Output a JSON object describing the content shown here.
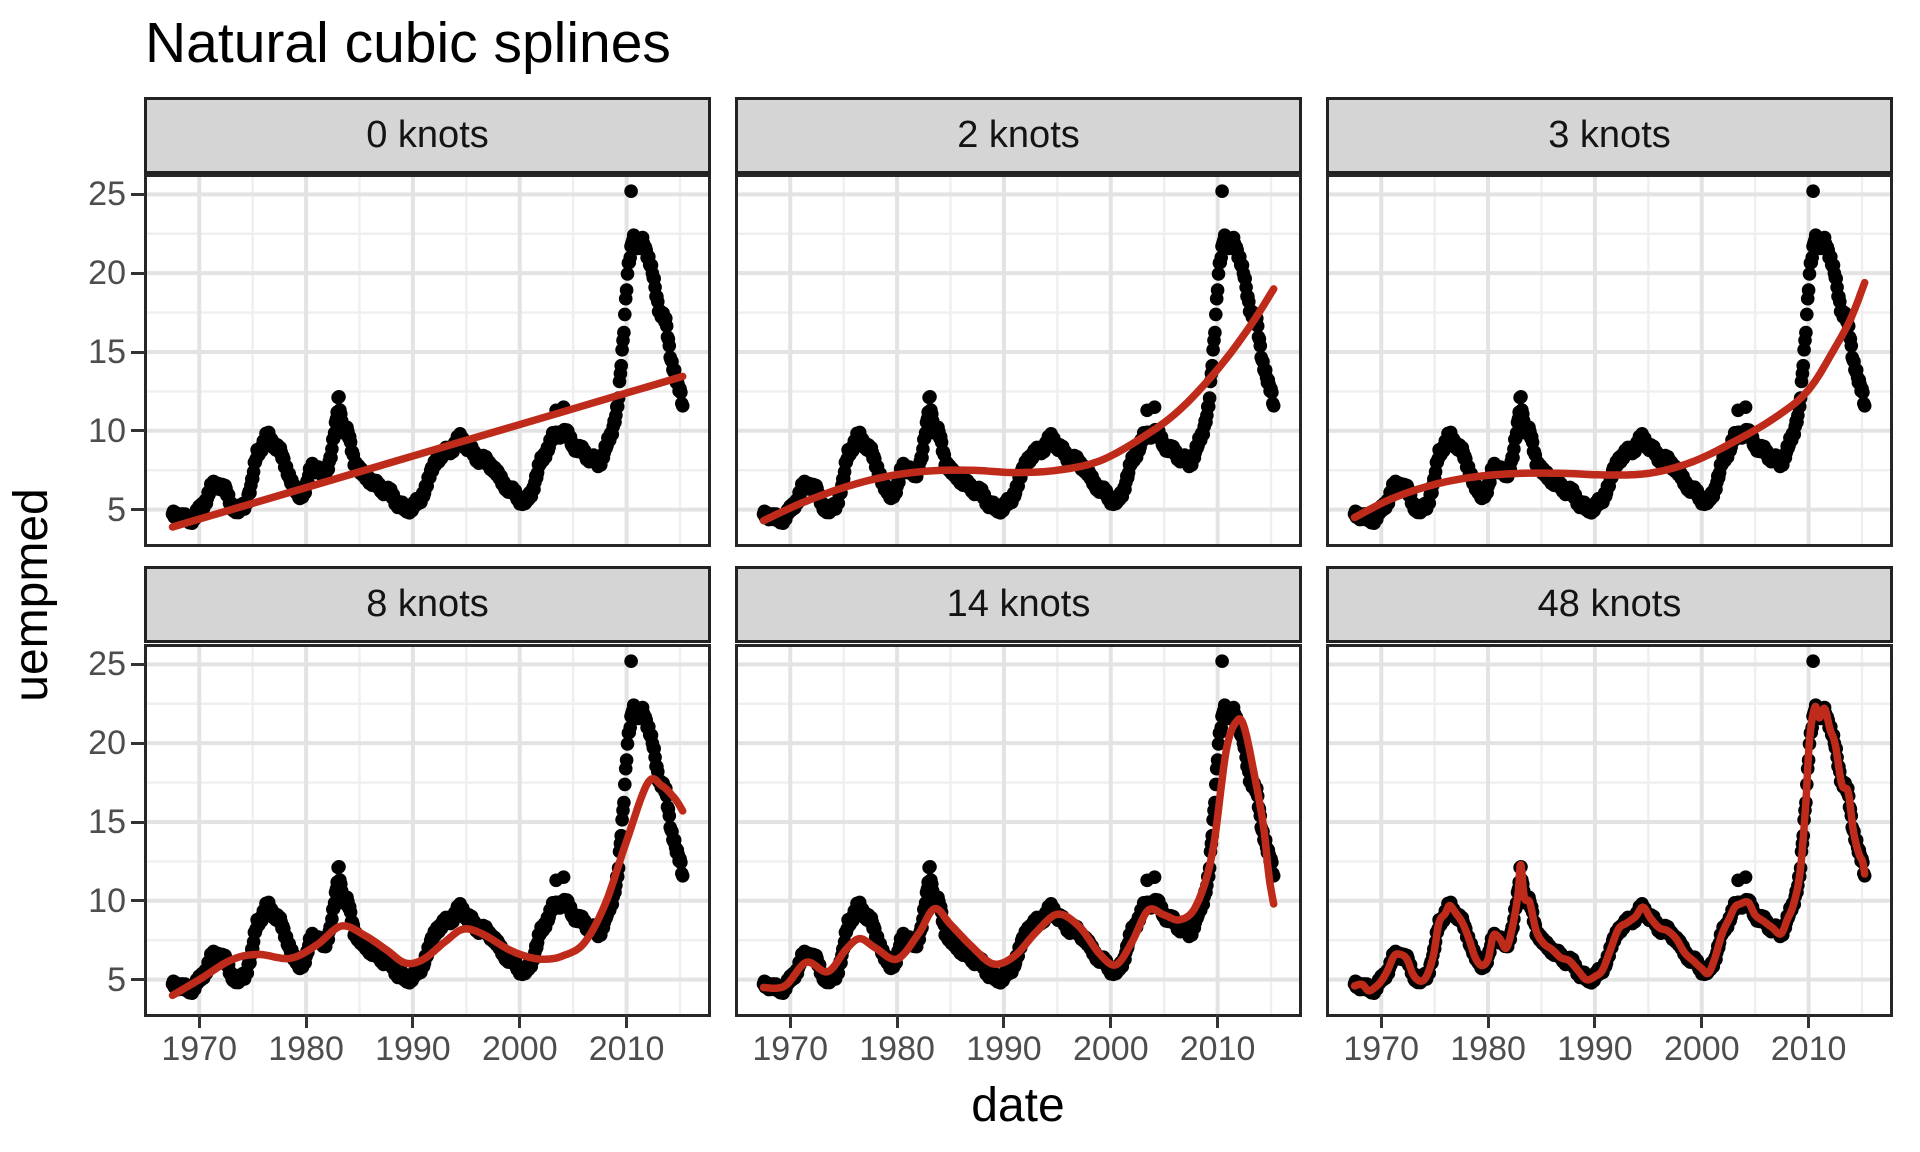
{
  "title": "Natural cubic splines",
  "chart_data": {
    "type": "scatter",
    "title": "Natural cubic splines",
    "xlabel": "date",
    "ylabel": "uempmed",
    "x_tick_labels": [
      "1970",
      "1980",
      "1990",
      "2000",
      "2010"
    ],
    "x_ticks": [
      1970,
      1980,
      1990,
      2000,
      2010
    ],
    "x_minor_ticks": [
      1975,
      1985,
      1995,
      2005,
      2015
    ],
    "y_tick_labels": [
      "5",
      "10",
      "15",
      "20",
      "25"
    ],
    "y_ticks": [
      5,
      10,
      15,
      20,
      25
    ],
    "y_minor_ticks": [
      7.5,
      12.5,
      17.5,
      22.5
    ],
    "xlim": [
      1965.11,
      2017.62
    ],
    "ylim": [
      2.82,
      26.1
    ],
    "x_data_range": [
      1967.5,
      2015.25
    ],
    "legend": "none",
    "grid": "on",
    "colors": {
      "point": "#000000",
      "spline_line": "#bf2b1a",
      "strip_fill": "#d5d5d5",
      "strip_border": "#222222",
      "panel_border": "#262626",
      "grid_major": "#e3e3e3",
      "grid_minor": "#efefef",
      "axis_text": "#4d4d4d",
      "tick_mark": "#333333"
    },
    "scatter_monthly_step_years": 0.08333,
    "scatter_keypoints": [
      [
        1967.5,
        4.6
      ],
      [
        1968.2,
        4.7
      ],
      [
        1968.8,
        4.3
      ],
      [
        1969.4,
        4.5
      ],
      [
        1970.0,
        4.9
      ],
      [
        1970.6,
        5.6
      ],
      [
        1971.2,
        6.5
      ],
      [
        1971.8,
        6.6
      ],
      [
        1972.4,
        6.3
      ],
      [
        1973.0,
        5.3
      ],
      [
        1973.7,
        4.9
      ],
      [
        1974.3,
        5.3
      ],
      [
        1974.9,
        6.6
      ],
      [
        1975.4,
        8.6
      ],
      [
        1976.0,
        9.2
      ],
      [
        1976.4,
        9.7
      ],
      [
        1977.0,
        9.2
      ],
      [
        1977.6,
        8.6
      ],
      [
        1978.2,
        7.6
      ],
      [
        1978.8,
        6.4
      ],
      [
        1979.4,
        5.9
      ],
      [
        1980.0,
        6.3
      ],
      [
        1980.5,
        7.8
      ],
      [
        1981.1,
        7.6
      ],
      [
        1981.7,
        7.0
      ],
      [
        1982.3,
        8.4
      ],
      [
        1982.8,
        10.4
      ],
      [
        1983.05,
        12.3
      ],
      [
        1983.4,
        10.2
      ],
      [
        1983.9,
        9.9
      ],
      [
        1984.5,
        8.1
      ],
      [
        1985.2,
        7.3
      ],
      [
        1986.0,
        6.9
      ],
      [
        1986.8,
        6.4
      ],
      [
        1987.6,
        6.2
      ],
      [
        1988.4,
        5.6
      ],
      [
        1989.2,
        5.0
      ],
      [
        1990.0,
        5.2
      ],
      [
        1990.7,
        5.6
      ],
      [
        1991.4,
        6.8
      ],
      [
        1992.2,
        8.2
      ],
      [
        1993.0,
        8.6
      ],
      [
        1993.8,
        9.0
      ],
      [
        1994.5,
        9.6
      ],
      [
        1995.2,
        8.9
      ],
      [
        1996.0,
        8.3
      ],
      [
        1996.8,
        8.1
      ],
      [
        1997.6,
        7.6
      ],
      [
        1998.4,
        6.7
      ],
      [
        1999.2,
        6.2
      ],
      [
        2000.0,
        5.7
      ],
      [
        2000.6,
        5.4
      ],
      [
        2001.2,
        6.3
      ],
      [
        2001.9,
        7.9
      ],
      [
        2002.6,
        8.9
      ],
      [
        2003.1,
        9.6
      ],
      [
        2003.6,
        9.8
      ],
      [
        2004.35,
        9.9
      ],
      [
        2005.0,
        9.1
      ],
      [
        2005.8,
        8.7
      ],
      [
        2006.6,
        8.3
      ],
      [
        2007.4,
        7.9
      ],
      [
        2008.0,
        8.8
      ],
      [
        2008.6,
        9.8
      ],
      [
        2009.2,
        11.8
      ],
      [
        2009.7,
        15.8
      ],
      [
        2010.1,
        20.3
      ],
      [
        2010.6,
        22.3
      ],
      [
        2011.0,
        21.6
      ],
      [
        2011.5,
        22.2
      ],
      [
        2012.0,
        20.9
      ],
      [
        2012.5,
        19.9
      ],
      [
        2013.1,
        17.4
      ],
      [
        2013.7,
        16.9
      ],
      [
        2014.2,
        14.4
      ],
      [
        2014.7,
        13.0
      ],
      [
        2015.05,
        12.5
      ],
      [
        2015.25,
        11.7
      ]
    ],
    "scatter_outlier_points": [
      [
        2003.4,
        11.3
      ],
      [
        2004.1,
        11.5
      ],
      [
        2010.42,
        25.2
      ]
    ],
    "noise": {
      "a1": 0.21,
      "f1": 1.93,
      "a2": 0.13,
      "f2": 0.41,
      "p2": 2
    },
    "facets": [
      {
        "label": "0 knots",
        "knots": 0,
        "spline": [
          [
            1967.5,
            3.9
          ],
          [
            2015.25,
            13.45
          ]
        ]
      },
      {
        "label": "2 knots",
        "knots": 2,
        "spline": [
          [
            1967.5,
            4.3
          ],
          [
            1971,
            5.4
          ],
          [
            1975,
            6.4
          ],
          [
            1979,
            7.1
          ],
          [
            1983,
            7.45
          ],
          [
            1987,
            7.5
          ],
          [
            1991,
            7.35
          ],
          [
            1995,
            7.5
          ],
          [
            1999,
            8.1
          ],
          [
            2003,
            9.6
          ],
          [
            2006.4,
            11.3
          ],
          [
            2010,
            13.9
          ],
          [
            2013,
            16.6
          ],
          [
            2015.25,
            19.0
          ]
        ]
      },
      {
        "label": "3 knots",
        "knots": 3,
        "spline": [
          [
            1967.5,
            4.5
          ],
          [
            1971,
            5.7
          ],
          [
            1975,
            6.6
          ],
          [
            1979,
            7.1
          ],
          [
            1983,
            7.3
          ],
          [
            1987,
            7.3
          ],
          [
            1991,
            7.2
          ],
          [
            1995,
            7.3
          ],
          [
            1999,
            8.0
          ],
          [
            2003,
            9.3
          ],
          [
            2007,
            10.9
          ],
          [
            2010,
            12.6
          ],
          [
            2012.5,
            15.3
          ],
          [
            2014,
            17.2
          ],
          [
            2015.25,
            19.4
          ]
        ]
      },
      {
        "label": "8 knots",
        "knots": 8,
        "spline": [
          [
            1967.5,
            4.0
          ],
          [
            1970,
            5.0
          ],
          [
            1973,
            6.25
          ],
          [
            1975.5,
            6.6
          ],
          [
            1978.5,
            6.35
          ],
          [
            1981,
            7.2
          ],
          [
            1983.3,
            8.4
          ],
          [
            1985.5,
            7.8
          ],
          [
            1987.5,
            6.9
          ],
          [
            1989.3,
            6.05
          ],
          [
            1991,
            6.3
          ],
          [
            1993,
            7.4
          ],
          [
            1994.7,
            8.2
          ],
          [
            1996.5,
            7.9
          ],
          [
            1999,
            6.9
          ],
          [
            2001,
            6.4
          ],
          [
            2002.5,
            6.3
          ],
          [
            2004,
            6.5
          ],
          [
            2006,
            7.3
          ],
          [
            2008,
            9.8
          ],
          [
            2010,
            13.8
          ],
          [
            2012,
            17.5
          ],
          [
            2013.3,
            17.3
          ],
          [
            2014.5,
            16.5
          ],
          [
            2015.25,
            15.7
          ]
        ]
      },
      {
        "label": "14 knots",
        "knots": 14,
        "spline": [
          [
            1967.5,
            4.5
          ],
          [
            1969.5,
            4.6
          ],
          [
            1971.5,
            6.1
          ],
          [
            1973.5,
            5.5
          ],
          [
            1975.2,
            6.9
          ],
          [
            1976.5,
            7.6
          ],
          [
            1978,
            7.0
          ],
          [
            1980,
            6.3
          ],
          [
            1982,
            7.9
          ],
          [
            1983.5,
            9.5
          ],
          [
            1985,
            8.5
          ],
          [
            1987,
            7.1
          ],
          [
            1989,
            6.0
          ],
          [
            1991,
            6.5
          ],
          [
            1993,
            8.0
          ],
          [
            1995,
            9.15
          ],
          [
            1997,
            8.4
          ],
          [
            1999,
            6.6
          ],
          [
            2000.5,
            5.95
          ],
          [
            2002,
            7.4
          ],
          [
            2003.5,
            9.4
          ],
          [
            2005,
            9.1
          ],
          [
            2006.5,
            8.8
          ],
          [
            2008,
            9.7
          ],
          [
            2009.5,
            13.0
          ],
          [
            2010.8,
            19.5
          ],
          [
            2011.8,
            21.4
          ],
          [
            2012.5,
            21.0
          ],
          [
            2013.5,
            17.8
          ],
          [
            2014.3,
            14.7
          ],
          [
            2014.8,
            11.6
          ],
          [
            2015.25,
            9.8
          ]
        ]
      },
      {
        "label": "48 knots",
        "knots": 48,
        "spline": "baseline"
      }
    ]
  }
}
